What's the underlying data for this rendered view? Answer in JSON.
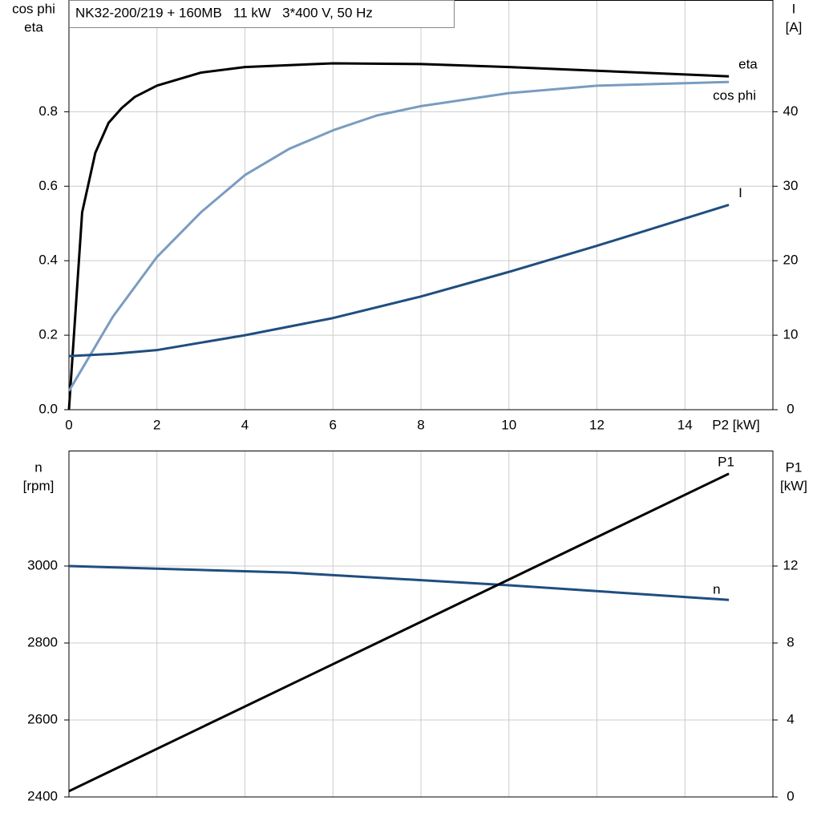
{
  "chart_data": [
    {
      "type": "line",
      "title": "NK32-200/219 + 160MB   11 kW   3*400 V, 50 Hz",
      "x_label": "P2 [kW]",
      "y_label": [
        "cos phi",
        "eta"
      ],
      "y2_label": [
        "I",
        "[A]"
      ],
      "xlim": [
        0,
        16
      ],
      "xticks": [
        0,
        2,
        4,
        6,
        8,
        10,
        12,
        14
      ],
      "ylim": [
        0,
        1.1
      ],
      "yticks": [
        {
          "value": 0,
          "label": "0.0"
        },
        0.2,
        0.4,
        0.6,
        0.8
      ],
      "y2lim": [
        0,
        55
      ],
      "y2ticks": [
        0,
        10,
        20,
        30,
        40
      ],
      "grid": true,
      "series": [
        {
          "name": "eta",
          "color": "#000000",
          "x": [
            0,
            0.3,
            0.6,
            0.9,
            1.2,
            1.5,
            2,
            3,
            4,
            6,
            8,
            10,
            12,
            15
          ],
          "values": [
            0,
            0.53,
            0.69,
            0.77,
            0.81,
            0.84,
            0.87,
            0.905,
            0.92,
            0.93,
            0.928,
            0.92,
            0.91,
            0.895
          ]
        },
        {
          "name": "cos phi",
          "color": "#7a9cc0",
          "x": [
            0,
            0.5,
            1,
            2,
            3,
            4,
            5,
            6,
            7,
            8,
            10,
            12,
            15
          ],
          "values": [
            0.05,
            0.15,
            0.25,
            0.41,
            0.53,
            0.63,
            0.7,
            0.75,
            0.79,
            0.815,
            0.85,
            0.87,
            0.88
          ]
        },
        {
          "name": "I",
          "color": "#1f4e80",
          "axis": "y2",
          "x": [
            0,
            1,
            2,
            4,
            6,
            8,
            10,
            12,
            15
          ],
          "values": [
            7.2,
            7.5,
            8,
            10,
            12.3,
            15.2,
            18.5,
            22,
            27.5
          ]
        }
      ]
    },
    {
      "type": "line",
      "y_label": [
        "n",
        "[rpm]"
      ],
      "y2_label": [
        "P1",
        "[kW]"
      ],
      "xlim": [
        0,
        16
      ],
      "ylim": [
        2400,
        3300
      ],
      "yticks": [
        2400,
        2600,
        2800,
        3000
      ],
      "y2lim": [
        0,
        18
      ],
      "y2ticks": [
        0,
        4,
        8,
        12
      ],
      "grid": true,
      "series": [
        {
          "name": "n",
          "color": "#1f4e80",
          "x": [
            0,
            5,
            10,
            15
          ],
          "values": [
            3000,
            2983,
            2950,
            2912
          ]
        },
        {
          "name": "P1",
          "color": "#000000",
          "axis": "y2",
          "x": [
            0,
            15
          ],
          "values": [
            0.3,
            16.8
          ]
        }
      ]
    }
  ]
}
